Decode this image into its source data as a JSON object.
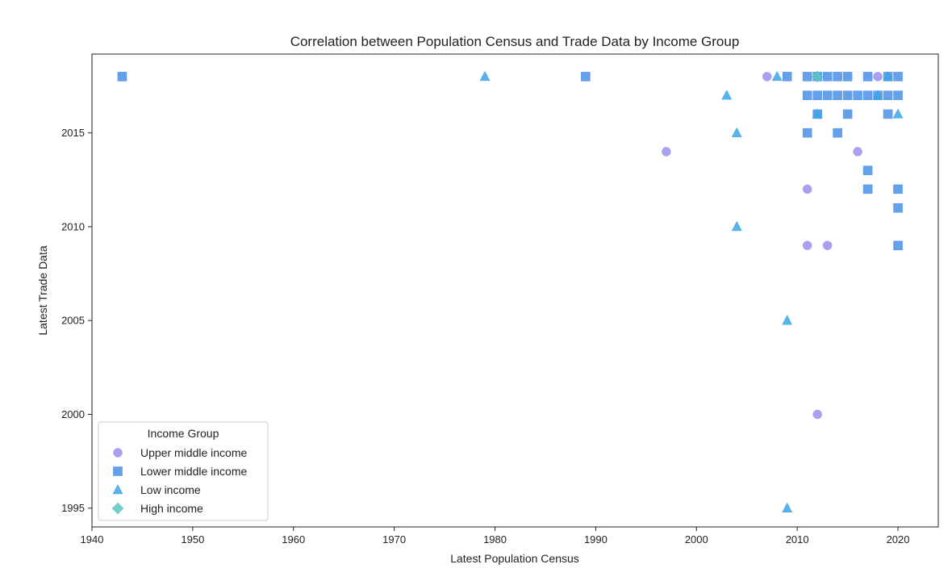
{
  "chart_data": {
    "type": "scatter",
    "title": "Correlation between Population Census and Trade Data by Income Group",
    "xlabel": "Latest Population Census",
    "ylabel": "Latest Trade Data",
    "xlim": [
      1940,
      2024
    ],
    "ylim": [
      1994,
      2019.2
    ],
    "xticks": [
      1940,
      1950,
      1960,
      1970,
      1980,
      1990,
      2000,
      2010,
      2020
    ],
    "yticks": [
      1995,
      2000,
      2005,
      2010,
      2015
    ],
    "grid": false,
    "legend": {
      "title": "Income Group",
      "placement": "lower-left"
    },
    "series": [
      {
        "name": "Upper middle income",
        "marker": "circle",
        "color": "#9b8ff0",
        "points": [
          [
            1997,
            2014
          ],
          [
            2007,
            2018
          ],
          [
            2011,
            2012
          ],
          [
            2011,
            2009
          ],
          [
            2012,
            2000
          ],
          [
            2013,
            2009
          ],
          [
            2016,
            2014
          ],
          [
            2018,
            2018
          ]
        ]
      },
      {
        "name": "Lower middle income",
        "marker": "square",
        "color": "#4a8fe8",
        "points": [
          [
            1943,
            2018
          ],
          [
            1989,
            2018
          ],
          [
            2009,
            2018
          ],
          [
            2011,
            2018
          ],
          [
            2012,
            2018
          ],
          [
            2013,
            2018
          ],
          [
            2014,
            2018
          ],
          [
            2015,
            2018
          ],
          [
            2017,
            2018
          ],
          [
            2019,
            2018
          ],
          [
            2020,
            2018
          ],
          [
            2011,
            2017
          ],
          [
            2012,
            2017
          ],
          [
            2013,
            2017
          ],
          [
            2014,
            2017
          ],
          [
            2015,
            2017
          ],
          [
            2016,
            2017
          ],
          [
            2017,
            2017
          ],
          [
            2018,
            2017
          ],
          [
            2019,
            2017
          ],
          [
            2020,
            2017
          ],
          [
            2012,
            2016
          ],
          [
            2015,
            2016
          ],
          [
            2019,
            2016
          ],
          [
            2011,
            2015
          ],
          [
            2014,
            2015
          ],
          [
            2017,
            2013
          ],
          [
            2017,
            2012
          ],
          [
            2020,
            2012
          ],
          [
            2020,
            2011
          ],
          [
            2020,
            2009
          ]
        ]
      },
      {
        "name": "Low income",
        "marker": "triangle",
        "color": "#3aa6e6",
        "points": [
          [
            1979,
            2018
          ],
          [
            2003,
            2017
          ],
          [
            2004,
            2015
          ],
          [
            2004,
            2010
          ],
          [
            2008,
            2018
          ],
          [
            2009,
            2005
          ],
          [
            2009,
            1995
          ],
          [
            2012,
            2016
          ],
          [
            2018,
            2017
          ],
          [
            2020,
            2016
          ],
          [
            2019,
            2018
          ]
        ]
      },
      {
        "name": "High income",
        "marker": "diamond",
        "color": "#5cc6c0",
        "points": [
          [
            2012,
            2018
          ]
        ]
      }
    ]
  }
}
